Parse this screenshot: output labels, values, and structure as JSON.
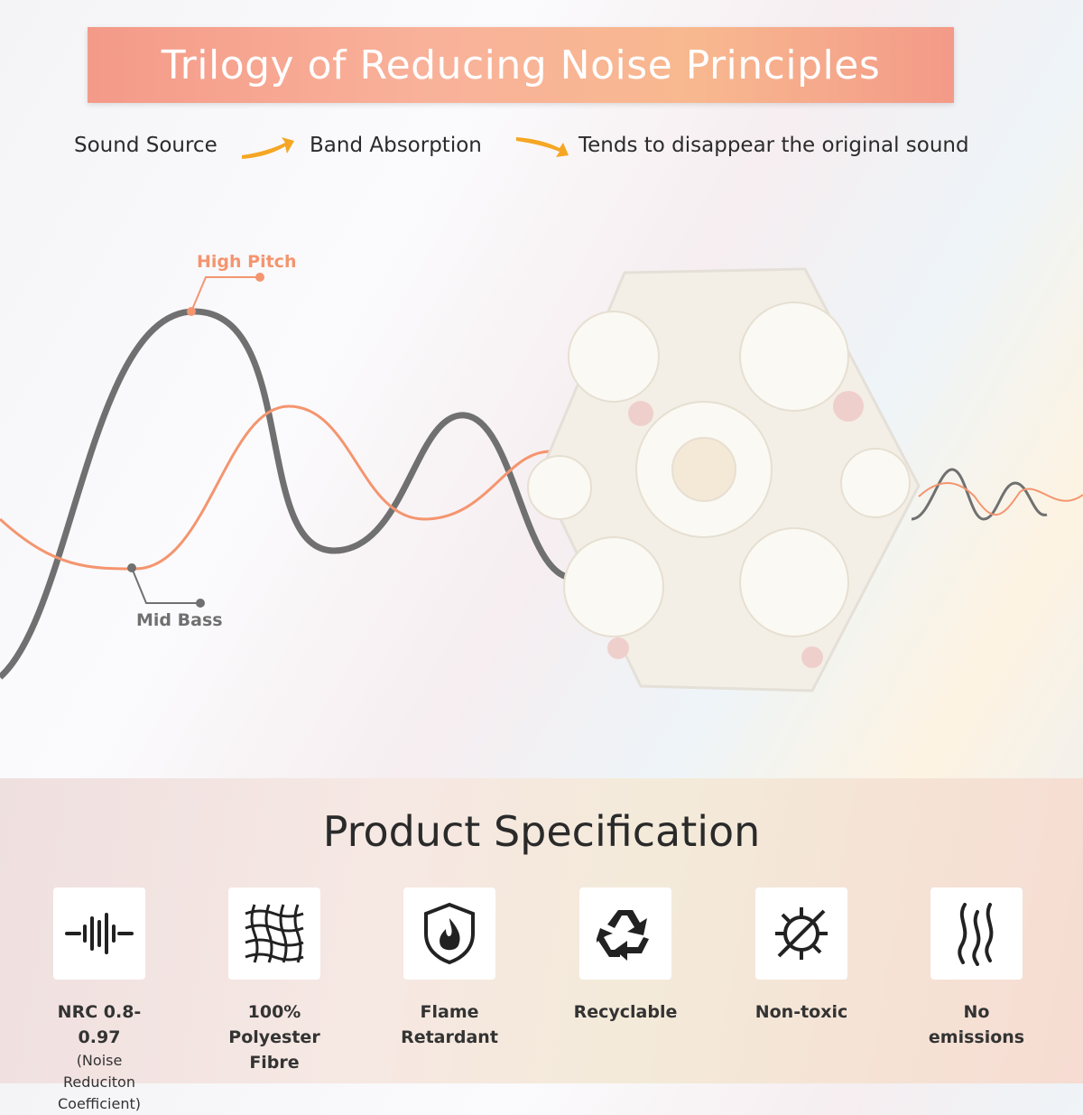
{
  "header": {
    "title": "Trilogy of Reducing Noise Principles"
  },
  "flow": {
    "steps": [
      "Sound Source",
      "Band Absorption",
      "Tends to disappear the original sound"
    ]
  },
  "waves": {
    "labels": [
      "High Pitch",
      "Mid Bass"
    ]
  },
  "specifications": {
    "title": "Product Specification",
    "items": [
      {
        "label": "NRC 0.8-0.97",
        "note": "(Noise Reduciton Coefficient)"
      },
      {
        "label": "100% Polyester Fibre"
      },
      {
        "label": "Flame Retardant"
      },
      {
        "label": "Recyclable"
      },
      {
        "label": "Non-toxic"
      },
      {
        "label": "No emissions"
      }
    ]
  }
}
